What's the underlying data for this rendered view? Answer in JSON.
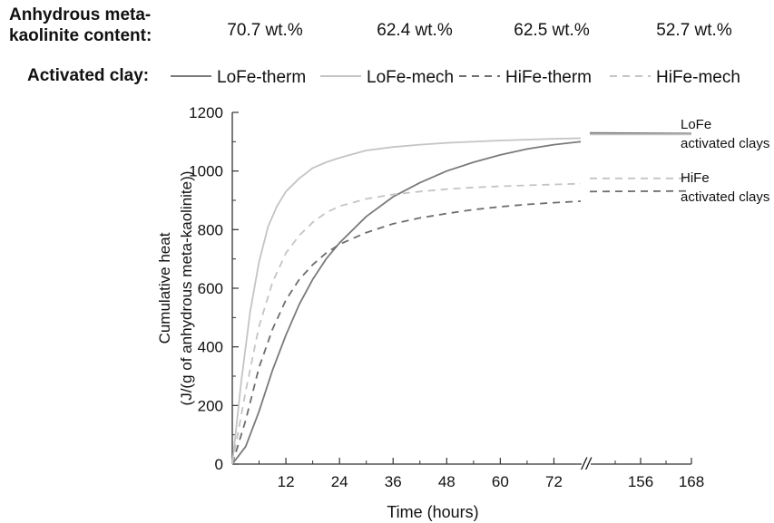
{
  "header": {
    "content_label_line1": "Anhydrous meta-",
    "content_label_line2": "kaolinite content:",
    "activated_clay_label": "Activated clay:",
    "contents": [
      "70.7 wt.%",
      "62.4 wt.%",
      "62.5 wt.%",
      "52.7 wt.%"
    ]
  },
  "chart_data": {
    "type": "line",
    "xlabel": "Time (hours)",
    "ylabel_line1": "Cumulative heat",
    "ylabel_line2": "(J/(g of anhydrous meta-kaolinite))",
    "ylim": [
      0,
      1200
    ],
    "y_ticks": [
      "0",
      "200",
      "400",
      "600",
      "800",
      "1000",
      "1200"
    ],
    "x_ticks_left": [
      "12",
      "24",
      "36",
      "48",
      "60",
      "72"
    ],
    "x_ticks_right": [
      "156",
      "168"
    ],
    "x_break": "//",
    "xlim_left": [
      0,
      78
    ],
    "xlim_right": [
      144,
      168
    ],
    "grid": false,
    "legend_placement": "top",
    "annotations": [
      {
        "line1": "LoFe",
        "line2": "activated clays"
      },
      {
        "line1": "HiFe",
        "line2": "activated clays"
      }
    ],
    "series": [
      {
        "name": "LoFe-therm",
        "color": "#7a7a7a",
        "dash": "solid",
        "x": [
          0,
          3,
          6,
          9,
          12,
          15,
          18,
          21,
          24,
          30,
          36,
          42,
          48,
          54,
          60,
          66,
          72,
          78
        ],
        "y": [
          0,
          60,
          180,
          320,
          440,
          545,
          630,
          700,
          755,
          845,
          912,
          960,
          1000,
          1030,
          1055,
          1075,
          1090,
          1100
        ],
        "x_late": [
          144,
          168
        ],
        "y_late": [
          1130,
          1128
        ]
      },
      {
        "name": "LoFe-mech",
        "color": "#c4c4c4",
        "dash": "solid",
        "x": [
          0,
          2,
          4,
          6,
          8,
          10,
          12,
          15,
          18,
          21,
          24,
          30,
          36,
          42,
          48,
          60,
          72,
          78
        ],
        "y": [
          0,
          280,
          520,
          690,
          810,
          880,
          930,
          975,
          1010,
          1030,
          1045,
          1070,
          1082,
          1090,
          1096,
          1104,
          1110,
          1112
        ],
        "x_late": [
          144,
          168
        ],
        "y_late": [
          1125,
          1125
        ]
      },
      {
        "name": "HiFe-therm",
        "color": "#6e6e6e",
        "dash": "dashed",
        "x": [
          0,
          3,
          6,
          9,
          12,
          15,
          18,
          21,
          24,
          30,
          36,
          42,
          48,
          54,
          60,
          66,
          72,
          78
        ],
        "y": [
          0,
          150,
          330,
          460,
          560,
          630,
          680,
          720,
          750,
          790,
          820,
          840,
          855,
          868,
          878,
          886,
          892,
          897
        ],
        "x_late": [
          144,
          168
        ],
        "y_late": [
          930,
          932
        ]
      },
      {
        "name": "HiFe-mech",
        "color": "#c4c4c4",
        "dash": "dashed",
        "x": [
          0,
          3,
          6,
          9,
          12,
          15,
          18,
          21,
          24,
          30,
          36,
          42,
          48,
          54,
          60,
          66,
          72,
          78
        ],
        "y": [
          0,
          250,
          470,
          620,
          720,
          780,
          825,
          858,
          880,
          905,
          920,
          930,
          938,
          944,
          948,
          951,
          954,
          957
        ],
        "x_late": [
          144,
          168
        ],
        "y_late": [
          975,
          975
        ]
      }
    ]
  }
}
